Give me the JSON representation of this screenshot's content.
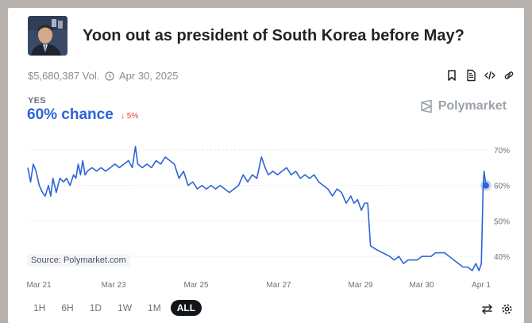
{
  "market": {
    "title": "Yoon out as president of South Korea before May?",
    "volume": "$5,680,387 Vol.",
    "end_date": "Apr 30, 2025",
    "outcome_label": "YES",
    "chance": "60% chance",
    "change": "5%",
    "change_direction": "down",
    "brand": "Polymarket",
    "source": "Source: Polymarket.com"
  },
  "actions": [
    "bookmark-icon",
    "document-icon",
    "embed-icon",
    "link-icon"
  ],
  "ranges": {
    "items": [
      "1H",
      "6H",
      "1D",
      "1W",
      "1M",
      "ALL"
    ],
    "selected": "ALL"
  },
  "tools": [
    "swap-icon",
    "settings-icon"
  ],
  "colors": {
    "line": "#2d63d8",
    "down": "#d64141",
    "grid": "#e5e7eb"
  },
  "chart_data": {
    "type": "line",
    "x_labels": [
      "Mar 21",
      "Mar 23",
      "Mar 25",
      "Mar 27",
      "Mar 29",
      "Mar 30",
      "Apr 1"
    ],
    "y_labels": [
      "70%",
      "60%",
      "50%",
      "40%"
    ],
    "y_ticks": [
      70,
      60,
      50,
      40
    ],
    "ylim": [
      36,
      72
    ],
    "xlim": [
      0,
      1
    ],
    "grid": "horizontal-dashed",
    "series": [
      {
        "values": [
          [
            0.0,
            65
          ],
          [
            0.006,
            61
          ],
          [
            0.012,
            66
          ],
          [
            0.018,
            64
          ],
          [
            0.025,
            60
          ],
          [
            0.032,
            58
          ],
          [
            0.038,
            57
          ],
          [
            0.045,
            60
          ],
          [
            0.05,
            57
          ],
          [
            0.055,
            62
          ],
          [
            0.062,
            58
          ],
          [
            0.07,
            62
          ],
          [
            0.078,
            61
          ],
          [
            0.085,
            62
          ],
          [
            0.092,
            60
          ],
          [
            0.1,
            63
          ],
          [
            0.105,
            62
          ],
          [
            0.11,
            66
          ],
          [
            0.115,
            63
          ],
          [
            0.12,
            67
          ],
          [
            0.125,
            63
          ],
          [
            0.13,
            64
          ],
          [
            0.14,
            65
          ],
          [
            0.15,
            64
          ],
          [
            0.16,
            65
          ],
          [
            0.17,
            64
          ],
          [
            0.18,
            65
          ],
          [
            0.19,
            66
          ],
          [
            0.2,
            65
          ],
          [
            0.21,
            66
          ],
          [
            0.22,
            67
          ],
          [
            0.228,
            65
          ],
          [
            0.235,
            71
          ],
          [
            0.24,
            66
          ],
          [
            0.25,
            65
          ],
          [
            0.26,
            66
          ],
          [
            0.27,
            65
          ],
          [
            0.28,
            67
          ],
          [
            0.29,
            66
          ],
          [
            0.3,
            68
          ],
          [
            0.31,
            67
          ],
          [
            0.32,
            66
          ],
          [
            0.33,
            62
          ],
          [
            0.34,
            64
          ],
          [
            0.35,
            60
          ],
          [
            0.36,
            61
          ],
          [
            0.37,
            59
          ],
          [
            0.38,
            60
          ],
          [
            0.39,
            59
          ],
          [
            0.4,
            60
          ],
          [
            0.41,
            59
          ],
          [
            0.42,
            60
          ],
          [
            0.43,
            59
          ],
          [
            0.44,
            58
          ],
          [
            0.45,
            59
          ],
          [
            0.46,
            60
          ],
          [
            0.47,
            63
          ],
          [
            0.48,
            61
          ],
          [
            0.49,
            63
          ],
          [
            0.5,
            62
          ],
          [
            0.51,
            68
          ],
          [
            0.518,
            65
          ],
          [
            0.525,
            63
          ],
          [
            0.535,
            64
          ],
          [
            0.545,
            63
          ],
          [
            0.555,
            64
          ],
          [
            0.565,
            65
          ],
          [
            0.575,
            63
          ],
          [
            0.585,
            64
          ],
          [
            0.595,
            62
          ],
          [
            0.605,
            63
          ],
          [
            0.615,
            62
          ],
          [
            0.625,
            63
          ],
          [
            0.635,
            61
          ],
          [
            0.645,
            60
          ],
          [
            0.655,
            59
          ],
          [
            0.665,
            57
          ],
          [
            0.675,
            59
          ],
          [
            0.685,
            58
          ],
          [
            0.695,
            55
          ],
          [
            0.705,
            57
          ],
          [
            0.712,
            55
          ],
          [
            0.72,
            56
          ],
          [
            0.728,
            53
          ],
          [
            0.735,
            55
          ],
          [
            0.742,
            55
          ],
          [
            0.748,
            43
          ],
          [
            0.76,
            42
          ],
          [
            0.775,
            41
          ],
          [
            0.79,
            40
          ],
          [
            0.8,
            39
          ],
          [
            0.81,
            40
          ],
          [
            0.82,
            38
          ],
          [
            0.83,
            39
          ],
          [
            0.84,
            39
          ],
          [
            0.85,
            39
          ],
          [
            0.86,
            40
          ],
          [
            0.87,
            40
          ],
          [
            0.88,
            40
          ],
          [
            0.89,
            41
          ],
          [
            0.9,
            41
          ],
          [
            0.91,
            41
          ],
          [
            0.92,
            40
          ],
          [
            0.93,
            39
          ],
          [
            0.94,
            38
          ],
          [
            0.95,
            37
          ],
          [
            0.96,
            37
          ],
          [
            0.97,
            36
          ],
          [
            0.978,
            38
          ],
          [
            0.985,
            36
          ],
          [
            0.99,
            38
          ],
          [
            0.994,
            60
          ],
          [
            0.996,
            64
          ],
          [
            0.998,
            62
          ],
          [
            1.0,
            60
          ]
        ]
      }
    ]
  }
}
